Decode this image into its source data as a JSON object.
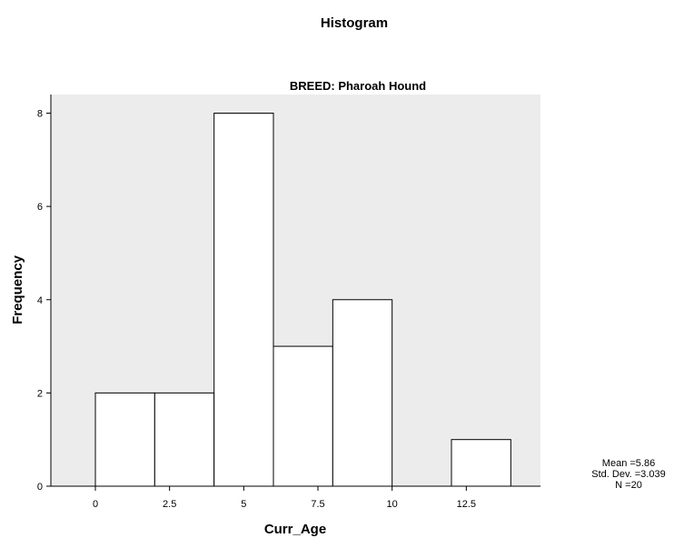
{
  "chart_data": {
    "type": "bar",
    "title": "Histogram",
    "subtitle": "BREED: Pharoah Hound",
    "xlabel": "Curr_Age",
    "ylabel": "Frequency",
    "bins": [
      {
        "start": 0,
        "end": 2,
        "count": 2
      },
      {
        "start": 2,
        "end": 4,
        "count": 2
      },
      {
        "start": 4,
        "end": 6,
        "count": 8
      },
      {
        "start": 6,
        "end": 8,
        "count": 3
      },
      {
        "start": 8,
        "end": 10,
        "count": 4
      },
      {
        "start": 10,
        "end": 12,
        "count": 0
      },
      {
        "start": 12,
        "end": 14,
        "count": 1
      }
    ],
    "xlim": [
      -1.5,
      15
    ],
    "ylim": [
      0,
      8.4
    ],
    "x_ticks": [
      0,
      2.5,
      5,
      7.5,
      10,
      12.5
    ],
    "x_tick_labels": [
      "0",
      "2.5",
      "5",
      "7.5",
      "10",
      "12.5"
    ],
    "y_ticks": [
      0,
      2,
      4,
      6,
      8
    ],
    "y_tick_labels": [
      "0",
      "2",
      "4",
      "6",
      "8"
    ],
    "grid": false,
    "stats": {
      "mean": "Mean =5.86",
      "std_dev": "Std. Dev. =3.039",
      "n": "N =20"
    },
    "colors": {
      "plot_background": "#ececec",
      "bar_fill": "#ffffff",
      "bar_stroke": "#000000"
    }
  }
}
